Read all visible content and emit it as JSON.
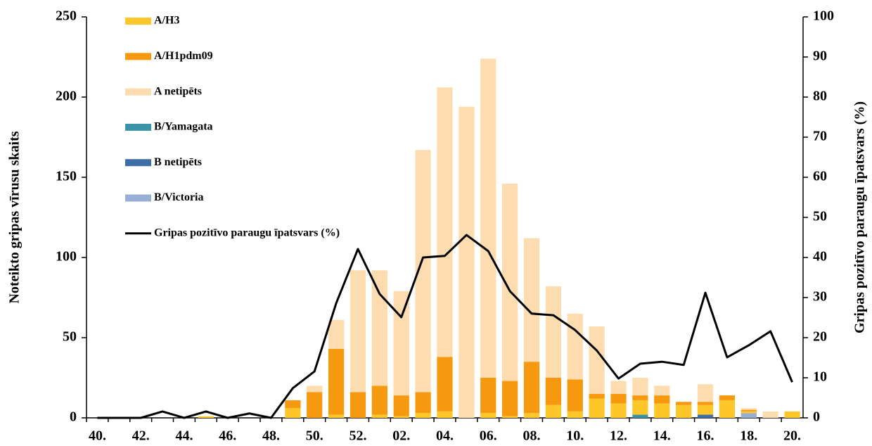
{
  "chart_data": {
    "type": "bar",
    "y_label": "Noteikto gripas vīrusu skaits",
    "y2_label": "Gripas pozitīvo paraugu īpatsvars (%)",
    "categories": [
      "40.",
      null,
      "42.",
      null,
      "44.",
      null,
      "46.",
      null,
      "48.",
      null,
      "50.",
      null,
      "52.",
      null,
      "02.",
      null,
      "04.",
      null,
      "06.",
      null,
      "08.",
      null,
      "10.",
      null,
      "12.",
      null,
      "14.",
      null,
      "16.",
      null,
      "18.",
      null,
      "20."
    ],
    "series": [
      {
        "name": "A/H3",
        "color": "#ffc62a",
        "values": [
          0,
          0,
          0,
          0,
          0,
          1,
          0,
          0,
          0,
          6,
          0,
          2,
          0,
          2,
          1,
          3,
          4,
          0,
          3,
          1,
          3,
          8,
          4,
          12,
          9,
          9,
          9,
          8,
          6,
          11,
          1,
          0,
          4
        ]
      },
      {
        "name": "A/H1pdm09",
        "color": "#f7990e",
        "values": [
          0,
          0,
          0,
          0,
          0,
          0,
          0,
          0,
          0,
          5,
          16,
          41,
          16,
          18,
          13,
          13,
          34,
          0,
          22,
          22,
          32,
          17,
          20,
          3,
          6,
          3,
          5,
          2,
          2,
          3,
          1,
          0,
          0
        ]
      },
      {
        "name": "A netipēts",
        "color": "#fddcaf",
        "values": [
          0,
          0,
          0,
          0,
          0,
          0,
          0,
          0,
          0,
          0,
          4,
          18,
          76,
          72,
          65,
          151,
          168,
          194,
          199,
          123,
          77,
          57,
          41,
          42,
          8,
          11,
          6,
          0,
          11,
          0,
          1,
          4,
          0
        ]
      },
      {
        "name": "B/Yamagata",
        "color": "#3a93a6",
        "values": [
          0,
          0,
          0,
          0,
          0,
          0,
          0,
          0,
          0,
          0,
          0,
          0,
          0,
          0,
          0,
          0,
          0,
          0,
          0,
          0,
          0,
          0,
          0,
          0,
          0,
          2,
          0,
          0,
          0,
          0,
          0,
          0,
          0
        ]
      },
      {
        "name": "B netipēts",
        "color": "#3e6ea6",
        "values": [
          0,
          0,
          0,
          0,
          0,
          0,
          0,
          0,
          0,
          0,
          0,
          0,
          0,
          0,
          0,
          0,
          0,
          0,
          0,
          0,
          0,
          0,
          0,
          0,
          0,
          0,
          0,
          0,
          2,
          0,
          0,
          0,
          0
        ]
      },
      {
        "name": "B/Victoria",
        "color": "#97aed5",
        "values": [
          0,
          0,
          0,
          0,
          0,
          0,
          0,
          0,
          0,
          0,
          0,
          0,
          0,
          0,
          0,
          0,
          0,
          0,
          0,
          0,
          0,
          0,
          0,
          0,
          0,
          0,
          0,
          0,
          0,
          0,
          3,
          0,
          0
        ]
      },
      {
        "name": "Gripas pozitīvo paraugu īpatsvars (%)",
        "type": "line",
        "axis": "y2",
        "color": "#000000",
        "values": [
          0,
          0,
          0,
          1.6,
          0,
          1.6,
          0,
          1.1,
          0,
          7.4,
          11.6,
          28.6,
          42.1,
          30.9,
          25.1,
          40.0,
          40.4,
          45.6,
          41.6,
          31.6,
          26.0,
          25.6,
          21.9,
          16.8,
          9.8,
          13.5,
          14.0,
          13.2,
          31.2,
          15.1,
          18.1,
          21.6,
          8.9
        ]
      }
    ],
    "ylim": [
      0,
      250
    ],
    "yticks": [
      0,
      50,
      100,
      150,
      200,
      250
    ],
    "y2lim": [
      0,
      100
    ],
    "y2ticks": [
      0,
      10,
      20,
      30,
      40,
      50,
      60,
      70,
      80,
      90,
      100
    ]
  }
}
